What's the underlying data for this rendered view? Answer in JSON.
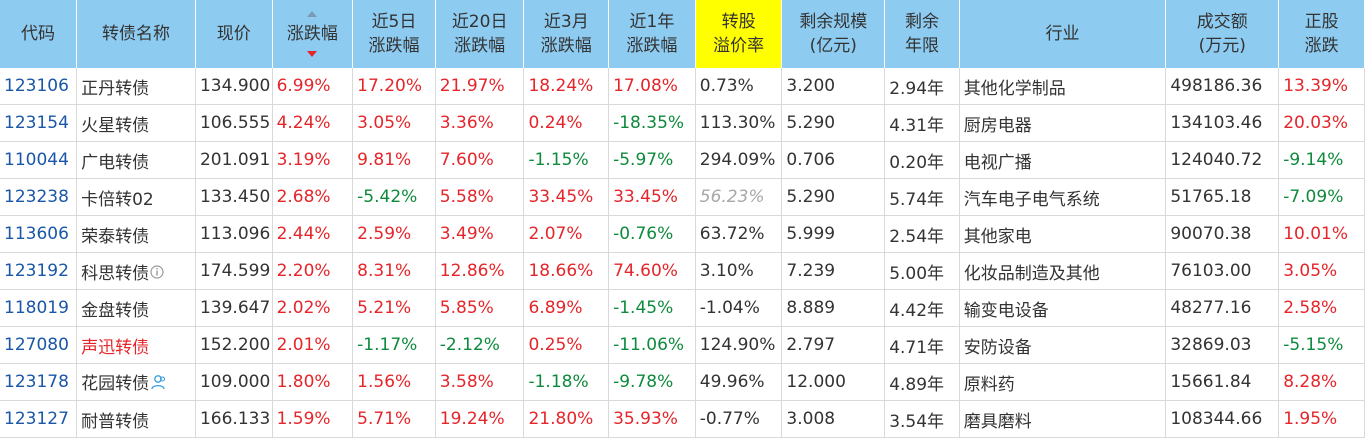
{
  "headers": [
    {
      "line1": "代码",
      "line2": ""
    },
    {
      "line1": "转债名称",
      "line2": ""
    },
    {
      "line1": "现价",
      "line2": ""
    },
    {
      "line1": "涨跌幅",
      "line2": ""
    },
    {
      "line1": "近5日",
      "line2": "涨跌幅"
    },
    {
      "line1": "近20日",
      "line2": "涨跌幅"
    },
    {
      "line1": "近3月",
      "line2": "涨跌幅"
    },
    {
      "line1": "近1年",
      "line2": "涨跌幅"
    },
    {
      "line1": "转股",
      "line2": "溢价率"
    },
    {
      "line1": "剩余规模",
      "line2": "(亿元)"
    },
    {
      "line1": "剩余",
      "line2": "年限"
    },
    {
      "line1": "行业",
      "line2": ""
    },
    {
      "line1": "成交额",
      "line2": "(万元)"
    },
    {
      "line1": "正股",
      "line2": "涨跌"
    }
  ],
  "colors": {
    "up": "#e5252a",
    "down": "#0e8a3c",
    "header_bg": "#8ecbf0",
    "highlight": "#ffff00",
    "code": "#1a57a8"
  },
  "rows": [
    {
      "code": "123106",
      "name": "正丹转债",
      "price": "134.900",
      "chg": "6.99%",
      "d5": "17.20%",
      "d20": "21.97%",
      "m3": "18.24%",
      "y1": "17.08%",
      "premium": "0.73%",
      "scale": "3.200",
      "years": "2.94年",
      "industry": "其他化学制品",
      "turnover": "498186.36",
      "stock_chg": "13.39%"
    },
    {
      "code": "123154",
      "name": "火星转债",
      "price": "106.555",
      "chg": "4.24%",
      "d5": "3.05%",
      "d20": "3.36%",
      "m3": "0.24%",
      "y1": "-18.35%",
      "premium": "113.30%",
      "scale": "5.290",
      "years": "4.31年",
      "industry": "厨房电器",
      "turnover": "134103.46",
      "stock_chg": "20.03%"
    },
    {
      "code": "110044",
      "name": "广电转债",
      "price": "201.091",
      "chg": "3.19%",
      "d5": "9.81%",
      "d20": "7.60%",
      "m3": "-1.15%",
      "y1": "-5.97%",
      "premium": "294.09%",
      "scale": "0.706",
      "years": "0.20年",
      "industry": "电视广播",
      "turnover": "124040.72",
      "stock_chg": "-9.14%"
    },
    {
      "code": "123238",
      "name": "卡倍转02",
      "price": "133.450",
      "chg": "2.68%",
      "d5": "-5.42%",
      "d20": "5.58%",
      "m3": "33.45%",
      "y1": "33.45%",
      "premium": "56.23%",
      "scale": "5.290",
      "years": "5.74年",
      "industry": "汽车电子电气系统",
      "turnover": "51765.18",
      "stock_chg": "-7.09%"
    },
    {
      "code": "113606",
      "name": "荣泰转债",
      "price": "113.096",
      "chg": "2.44%",
      "d5": "2.59%",
      "d20": "3.49%",
      "m3": "2.07%",
      "y1": "-0.76%",
      "premium": "63.72%",
      "scale": "5.999",
      "years": "2.54年",
      "industry": "其他家电",
      "turnover": "90070.38",
      "stock_chg": "10.01%"
    },
    {
      "code": "123192",
      "name": "科思转债",
      "price": "174.599",
      "chg": "2.20%",
      "d5": "8.31%",
      "d20": "12.86%",
      "m3": "18.66%",
      "y1": "74.60%",
      "premium": "3.10%",
      "scale": "7.239",
      "years": "5.00年",
      "industry": "化妆品制造及其他",
      "turnover": "76103.00",
      "stock_chg": "3.05%"
    },
    {
      "code": "118019",
      "name": "金盘转债",
      "price": "139.647",
      "chg": "2.02%",
      "d5": "5.21%",
      "d20": "5.85%",
      "m3": "6.89%",
      "y1": "-1.45%",
      "premium": "-1.04%",
      "scale": "8.889",
      "years": "4.42年",
      "industry": "输变电设备",
      "turnover": "48277.16",
      "stock_chg": "2.58%"
    },
    {
      "code": "127080",
      "name": "声迅转债",
      "price": "152.200",
      "chg": "2.01%",
      "d5": "-1.17%",
      "d20": "-2.12%",
      "m3": "0.25%",
      "y1": "-11.06%",
      "premium": "124.90%",
      "scale": "2.797",
      "years": "4.71年",
      "industry": "安防设备",
      "turnover": "32869.03",
      "stock_chg": "-5.15%"
    },
    {
      "code": "123178",
      "name": "花园转债",
      "price": "109.000",
      "chg": "1.80%",
      "d5": "1.56%",
      "d20": "3.58%",
      "m3": "-1.18%",
      "y1": "-9.78%",
      "premium": "49.96%",
      "scale": "12.000",
      "years": "4.89年",
      "industry": "原料药",
      "turnover": "15661.84",
      "stock_chg": "8.28%"
    },
    {
      "code": "123127",
      "name": "耐普转债",
      "price": "166.133",
      "chg": "1.59%",
      "d5": "5.71%",
      "d20": "19.24%",
      "m3": "21.80%",
      "y1": "35.93%",
      "premium": "-0.77%",
      "scale": "3.008",
      "years": "3.54年",
      "industry": "磨具磨料",
      "turnover": "108344.66",
      "stock_chg": "1.95%"
    }
  ],
  "name_colors": {
    "127080": "#e5252a"
  },
  "name_icons": {
    "123192": "info-icon",
    "123178": "user-icon"
  },
  "dim_premium": [
    "123238"
  ]
}
